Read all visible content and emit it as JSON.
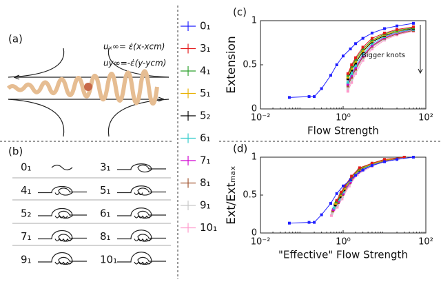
{
  "panel_a": {
    "label": "(a)",
    "eq1": "uₓ∞= ε̇(x-xcm)",
    "eq2": "uy∞=-ε̇(y-ycm)"
  },
  "panel_b": {
    "label": "(b)",
    "knots": [
      "0₁",
      "3₁",
      "4₁",
      "5₁",
      "5₂",
      "6₁",
      "7₁",
      "8₁",
      "9₁",
      "10₁"
    ]
  },
  "chart_data": [
    {
      "type": "line",
      "panel_label": "(c)",
      "xlabel": "Flow Strength",
      "ylabel": "Extension",
      "annotation": "Bigger knots",
      "xlog": true,
      "xlim": [
        0.01,
        100
      ],
      "xticks": [
        {
          "value": 0.01,
          "label": "10⁻²"
        },
        {
          "value": 1,
          "label": "10⁰"
        },
        {
          "value": 100,
          "label": "10²"
        }
      ],
      "ylim": [
        0,
        1
      ],
      "yticks": [
        0,
        0.5,
        1
      ],
      "series": [
        {
          "name": "0₁",
          "color": "#1f1fff",
          "x": [
            0.05,
            0.15,
            0.2,
            0.3,
            0.5,
            0.7,
            1,
            1.5,
            2,
            3,
            5,
            10,
            20,
            50
          ],
          "values": [
            0.13,
            0.14,
            0.14,
            0.23,
            0.38,
            0.5,
            0.6,
            0.68,
            0.74,
            0.8,
            0.86,
            0.91,
            0.94,
            0.97
          ]
        },
        {
          "name": "3₁",
          "color": "#e41a1c",
          "x": [
            1.3,
            1.6,
            2,
            3,
            5,
            10,
            20,
            50
          ],
          "values": [
            0.4,
            0.5,
            0.58,
            0.7,
            0.8,
            0.86,
            0.9,
            0.93
          ]
        },
        {
          "name": "4₁",
          "color": "#2ca02c",
          "x": [
            1.3,
            1.6,
            2,
            3,
            5,
            10,
            20,
            50
          ],
          "values": [
            0.38,
            0.48,
            0.56,
            0.68,
            0.78,
            0.85,
            0.89,
            0.92
          ]
        },
        {
          "name": "5₁",
          "color": "#e8b000",
          "x": [
            1.3,
            1.6,
            2,
            3,
            5,
            10,
            20,
            50
          ],
          "values": [
            0.36,
            0.46,
            0.54,
            0.66,
            0.77,
            0.84,
            0.88,
            0.92
          ]
        },
        {
          "name": "5₂",
          "color": "#000000",
          "x": [
            1.3,
            1.6,
            2,
            3,
            5,
            10,
            20,
            50
          ],
          "values": [
            0.34,
            0.44,
            0.52,
            0.65,
            0.76,
            0.83,
            0.88,
            0.91
          ]
        },
        {
          "name": "6₁",
          "color": "#33cccc",
          "x": [
            1.3,
            1.6,
            2,
            3,
            5,
            10,
            20,
            50
          ],
          "values": [
            0.3,
            0.4,
            0.49,
            0.62,
            0.74,
            0.82,
            0.87,
            0.9
          ]
        },
        {
          "name": "7₁",
          "color": "#d000d0",
          "x": [
            1.3,
            1.6,
            2,
            3,
            5,
            10,
            20,
            50
          ],
          "values": [
            0.28,
            0.38,
            0.47,
            0.6,
            0.72,
            0.81,
            0.86,
            0.9
          ]
        },
        {
          "name": "8₁",
          "color": "#a0522d",
          "x": [
            1.3,
            1.6,
            2,
            3,
            5,
            10,
            20,
            50
          ],
          "values": [
            0.26,
            0.36,
            0.45,
            0.59,
            0.71,
            0.8,
            0.85,
            0.89
          ]
        },
        {
          "name": "9₁",
          "color": "#c8c8c8",
          "x": [
            1.3,
            1.6,
            2,
            3,
            5,
            10,
            20,
            50
          ],
          "values": [
            0.23,
            0.33,
            0.43,
            0.57,
            0.7,
            0.79,
            0.85,
            0.89
          ]
        },
        {
          "name": "10₁",
          "color": "#ff99cc",
          "x": [
            1.3,
            1.6,
            2,
            3,
            5,
            10,
            20,
            50
          ],
          "values": [
            0.2,
            0.3,
            0.4,
            0.55,
            0.68,
            0.78,
            0.84,
            0.88
          ]
        }
      ]
    },
    {
      "type": "line",
      "panel_label": "(d)",
      "xlabel": "\"Effective\" Flow Strength",
      "ylabel": "Ext/Extₘₐₓ",
      "xlog": true,
      "xlim": [
        0.01,
        100
      ],
      "xticks": [
        {
          "value": 0.01,
          "label": "10⁻²"
        },
        {
          "value": 1,
          "label": "10⁰"
        },
        {
          "value": 100,
          "label": "10²"
        }
      ],
      "ylim": [
        0,
        1
      ],
      "yticks": [
        0,
        0.5,
        1
      ],
      "series": [
        {
          "name": "0₁",
          "color": "#1f1fff",
          "x": [
            0.05,
            0.15,
            0.2,
            0.3,
            0.5,
            0.7,
            1,
            1.5,
            2,
            3,
            5,
            10,
            20,
            50
          ],
          "values": [
            0.13,
            0.14,
            0.14,
            0.24,
            0.39,
            0.52,
            0.62,
            0.7,
            0.76,
            0.83,
            0.89,
            0.94,
            0.97,
            1
          ]
        },
        {
          "name": "3₁",
          "color": "#e41a1c",
          "x": [
            0.7,
            0.9,
            1.1,
            1.6,
            2.5,
            5,
            10,
            30
          ],
          "values": [
            0.43,
            0.54,
            0.62,
            0.75,
            0.86,
            0.92,
            0.97,
            1
          ]
        },
        {
          "name": "4₁",
          "color": "#2ca02c",
          "x": [
            0.68,
            0.88,
            1.1,
            1.6,
            2.5,
            5,
            10,
            30
          ],
          "values": [
            0.41,
            0.52,
            0.61,
            0.74,
            0.85,
            0.92,
            0.97,
            1
          ]
        },
        {
          "name": "5₁",
          "color": "#e8b000",
          "x": [
            0.66,
            0.86,
            1.1,
            1.6,
            2.5,
            5,
            10,
            30
          ],
          "values": [
            0.39,
            0.5,
            0.59,
            0.72,
            0.84,
            0.91,
            0.96,
            1
          ]
        },
        {
          "name": "5₂",
          "color": "#000000",
          "x": [
            0.64,
            0.84,
            1.05,
            1.55,
            2.4,
            5,
            10,
            30
          ],
          "values": [
            0.37,
            0.48,
            0.57,
            0.71,
            0.83,
            0.91,
            0.96,
            1
          ]
        },
        {
          "name": "6₁",
          "color": "#33cccc",
          "x": [
            0.6,
            0.8,
            1,
            1.5,
            2.4,
            5,
            10,
            30
          ],
          "values": [
            0.33,
            0.44,
            0.54,
            0.69,
            0.82,
            0.9,
            0.96,
            1
          ]
        },
        {
          "name": "7₁",
          "color": "#d000d0",
          "x": [
            0.58,
            0.78,
            1,
            1.5,
            2.3,
            5,
            10,
            30
          ],
          "values": [
            0.31,
            0.42,
            0.52,
            0.67,
            0.8,
            0.9,
            0.96,
            1
          ]
        },
        {
          "name": "8₁",
          "color": "#a0522d",
          "x": [
            0.56,
            0.76,
            0.98,
            1.45,
            2.3,
            5,
            10,
            30
          ],
          "values": [
            0.29,
            0.4,
            0.51,
            0.66,
            0.8,
            0.9,
            0.95,
            1
          ]
        },
        {
          "name": "9₁",
          "color": "#c8c8c8",
          "x": [
            0.54,
            0.74,
            0.96,
            1.4,
            2.2,
            5,
            10,
            30
          ],
          "values": [
            0.26,
            0.37,
            0.48,
            0.64,
            0.79,
            0.89,
            0.95,
            1
          ]
        },
        {
          "name": "10₁",
          "color": "#ff99cc",
          "x": [
            0.52,
            0.72,
            0.94,
            1.4,
            2.2,
            5,
            10,
            30
          ],
          "values": [
            0.23,
            0.34,
            0.45,
            0.62,
            0.77,
            0.88,
            0.95,
            1
          ]
        }
      ]
    }
  ]
}
